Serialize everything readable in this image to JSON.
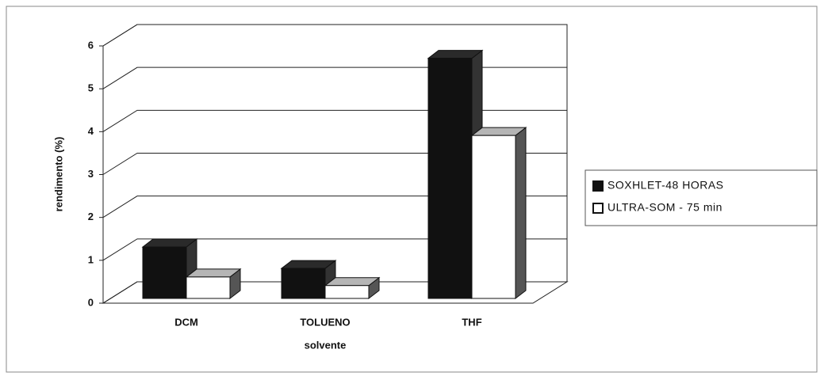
{
  "chart_data": {
    "type": "bar3d",
    "categories": [
      "DCM",
      "TOLUENO",
      "THF"
    ],
    "series": [
      {
        "name": "SOXHLET-48 HORAS",
        "color": "#111111",
        "values": [
          1.2,
          0.7,
          5.6
        ]
      },
      {
        "name": "ULTRA-SOM - 75 min",
        "color": "#ffffff",
        "values": [
          0.5,
          0.3,
          3.8
        ]
      }
    ],
    "x_label": "solvente",
    "y_label": "rendimento (%)",
    "ylim": [
      0,
      6
    ],
    "yticks": [
      0,
      1,
      2,
      3,
      4,
      5,
      6
    ],
    "grid": true,
    "legend": "right"
  }
}
